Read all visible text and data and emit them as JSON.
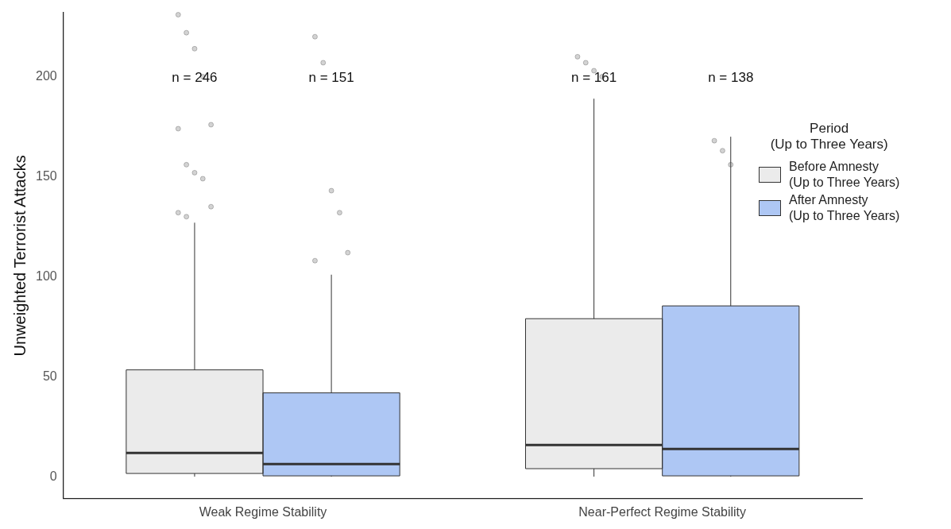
{
  "chart_data": {
    "type": "box",
    "ylabel": "Unweighted Terrorist Attacks",
    "legend_title": "Period\n(Up to Three Years)",
    "legend": "right",
    "grid": false,
    "categories": [
      "Weak Regime Stability",
      "Near-Perfect Regime Stability"
    ],
    "ylim": [
      -11,
      232
    ],
    "yticks": [
      0,
      50,
      100,
      150,
      200
    ],
    "series": [
      {
        "name": "Before Amnesty\n(Up to Three Years)",
        "color": "#ebebeb",
        "boxes": [
          {
            "low": 0,
            "q1": 1.6,
            "median": 11.9,
            "q3": 53.4,
            "high": 127,
            "outliers": [
              231,
              222,
              214,
              200,
              176,
              174,
              156,
              152,
              149,
              135,
              132,
              130
            ]
          },
          {
            "low": 0,
            "q1": 4,
            "median": 15.8,
            "q3": 79,
            "high": 189,
            "outliers": [
              210,
              207,
              203,
              200
            ]
          }
        ]
      },
      {
        "name": "After Amnesty\n(Up to Three Years)",
        "color": "#aec7f4",
        "boxes": [
          {
            "low": 0,
            "q1": 0.4,
            "median": 6.3,
            "q3": 41.9,
            "high": 101,
            "outliers": [
              220,
              207,
              143,
              132,
              112,
              108
            ]
          },
          {
            "low": 0,
            "q1": 0.4,
            "median": 13.8,
            "q3": 85.4,
            "high": 170,
            "outliers": [
              168,
              163,
              156
            ]
          }
        ]
      }
    ],
    "annotations": [
      "n = 246",
      "n = 151",
      "n = 161",
      "n = 138"
    ]
  }
}
